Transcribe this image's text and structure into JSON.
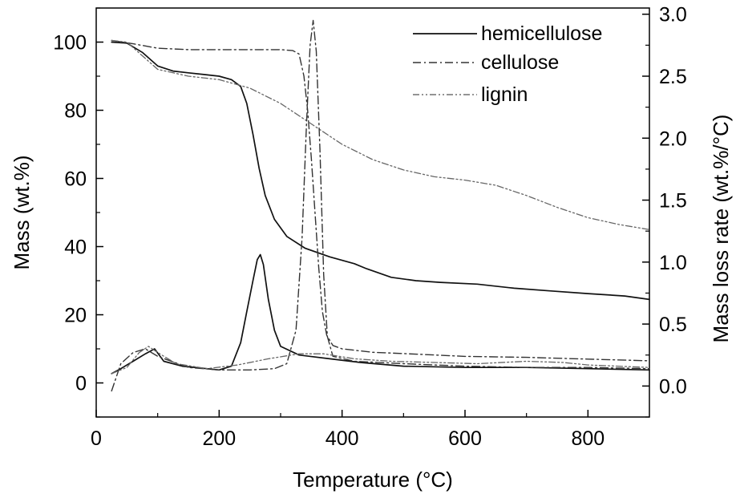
{
  "chart_data": {
    "type": "line",
    "xlabel": "Temperature (°C)",
    "ylabel": "Mass (wt.%)",
    "y2label": "Mass loss rate (wt.%/°C)",
    "xlim": [
      0,
      900
    ],
    "ylim": [
      -10,
      110
    ],
    "y2lim": [
      -0.25,
      3.05
    ],
    "x_ticks": [
      "0",
      "200",
      "400",
      "600",
      "800"
    ],
    "y_ticks": [
      "0",
      "20",
      "40",
      "60",
      "80",
      "100"
    ],
    "y2_ticks": [
      "0.0",
      "0.5",
      "1.0",
      "1.5",
      "2.0",
      "2.5",
      "3.0"
    ],
    "grid": false,
    "legend_position": "top-right",
    "series": [
      {
        "name": "hemicellulose",
        "axis": "left",
        "kind": "mass",
        "points": [
          [
            25,
            100
          ],
          [
            50,
            99.7
          ],
          [
            75,
            97
          ],
          [
            100,
            93
          ],
          [
            125,
            91.5
          ],
          [
            150,
            91
          ],
          [
            175,
            90.5
          ],
          [
            200,
            90
          ],
          [
            220,
            89
          ],
          [
            235,
            87
          ],
          [
            245,
            82
          ],
          [
            255,
            73
          ],
          [
            265,
            63
          ],
          [
            275,
            55
          ],
          [
            290,
            48
          ],
          [
            310,
            43
          ],
          [
            340,
            39.5
          ],
          [
            380,
            37
          ],
          [
            420,
            35
          ],
          [
            440,
            33.5
          ],
          [
            480,
            31
          ],
          [
            520,
            30
          ],
          [
            560,
            29.5
          ],
          [
            620,
            29
          ],
          [
            680,
            27.8
          ],
          [
            740,
            27
          ],
          [
            800,
            26.2
          ],
          [
            860,
            25.5
          ],
          [
            900,
            24.5
          ]
        ]
      },
      {
        "name": "cellulose",
        "axis": "left",
        "kind": "mass",
        "points": [
          [
            25,
            100.5
          ],
          [
            60,
            99.5
          ],
          [
            100,
            98.2
          ],
          [
            150,
            97.8
          ],
          [
            200,
            97.8
          ],
          [
            250,
            97.8
          ],
          [
            300,
            97.8
          ],
          [
            320,
            97.5
          ],
          [
            330,
            96.5
          ],
          [
            338,
            90
          ],
          [
            344,
            80
          ],
          [
            350,
            66
          ],
          [
            356,
            50
          ],
          [
            362,
            34
          ],
          [
            368,
            21
          ],
          [
            375,
            14
          ],
          [
            385,
            11
          ],
          [
            400,
            10
          ],
          [
            450,
            9
          ],
          [
            500,
            8.6
          ],
          [
            600,
            7.8
          ],
          [
            700,
            7.5
          ],
          [
            800,
            7
          ],
          [
            900,
            6.5
          ]
        ]
      },
      {
        "name": "lignin",
        "axis": "left",
        "kind": "mass",
        "points": [
          [
            25,
            100.5
          ],
          [
            50,
            100
          ],
          [
            75,
            96
          ],
          [
            100,
            92
          ],
          [
            150,
            90
          ],
          [
            200,
            89
          ],
          [
            250,
            86.5
          ],
          [
            300,
            82
          ],
          [
            350,
            76
          ],
          [
            400,
            70
          ],
          [
            450,
            65.5
          ],
          [
            500,
            62.5
          ],
          [
            550,
            60.5
          ],
          [
            600,
            59.5
          ],
          [
            650,
            58
          ],
          [
            700,
            55
          ],
          [
            750,
            51.5
          ],
          [
            800,
            48.5
          ],
          [
            850,
            46.5
          ],
          [
            900,
            45
          ]
        ]
      },
      {
        "name": "hemicellulose",
        "axis": "right",
        "kind": "rate",
        "points": [
          [
            25,
            0.1
          ],
          [
            40,
            0.14
          ],
          [
            60,
            0.2
          ],
          [
            80,
            0.26
          ],
          [
            95,
            0.3
          ],
          [
            110,
            0.2
          ],
          [
            140,
            0.16
          ],
          [
            180,
            0.14
          ],
          [
            200,
            0.13
          ],
          [
            220,
            0.16
          ],
          [
            235,
            0.35
          ],
          [
            245,
            0.6
          ],
          [
            255,
            0.85
          ],
          [
            262,
            1.02
          ],
          [
            267,
            1.06
          ],
          [
            272,
            0.98
          ],
          [
            280,
            0.7
          ],
          [
            290,
            0.45
          ],
          [
            300,
            0.32
          ],
          [
            330,
            0.25
          ],
          [
            380,
            0.22
          ],
          [
            430,
            0.19
          ],
          [
            500,
            0.16
          ],
          [
            600,
            0.15
          ],
          [
            700,
            0.15
          ],
          [
            800,
            0.14
          ],
          [
            900,
            0.13
          ]
        ]
      },
      {
        "name": "cellulose",
        "axis": "right",
        "kind": "rate",
        "points": [
          [
            25,
            -0.04
          ],
          [
            40,
            0.18
          ],
          [
            60,
            0.27
          ],
          [
            80,
            0.3
          ],
          [
            100,
            0.24
          ],
          [
            150,
            0.15
          ],
          [
            200,
            0.13
          ],
          [
            250,
            0.13
          ],
          [
            290,
            0.14
          ],
          [
            310,
            0.18
          ],
          [
            325,
            0.45
          ],
          [
            335,
            1.2
          ],
          [
            342,
            2.1
          ],
          [
            348,
            2.75
          ],
          [
            353,
            2.95
          ],
          [
            358,
            2.7
          ],
          [
            364,
            1.9
          ],
          [
            370,
            0.9
          ],
          [
            376,
            0.4
          ],
          [
            385,
            0.24
          ],
          [
            420,
            0.2
          ],
          [
            500,
            0.18
          ],
          [
            600,
            0.16
          ],
          [
            700,
            0.15
          ],
          [
            800,
            0.15
          ],
          [
            900,
            0.14
          ]
        ]
      },
      {
        "name": "lignin",
        "axis": "right",
        "kind": "rate",
        "points": [
          [
            25,
            0.1
          ],
          [
            50,
            0.15
          ],
          [
            70,
            0.27
          ],
          [
            85,
            0.32
          ],
          [
            100,
            0.27
          ],
          [
            130,
            0.18
          ],
          [
            180,
            0.14
          ],
          [
            230,
            0.17
          ],
          [
            280,
            0.22
          ],
          [
            330,
            0.26
          ],
          [
            370,
            0.26
          ],
          [
            420,
            0.22
          ],
          [
            480,
            0.2
          ],
          [
            550,
            0.19
          ],
          [
            620,
            0.18
          ],
          [
            700,
            0.2
          ],
          [
            760,
            0.19
          ],
          [
            800,
            0.17
          ],
          [
            900,
            0.15
          ]
        ]
      }
    ]
  }
}
